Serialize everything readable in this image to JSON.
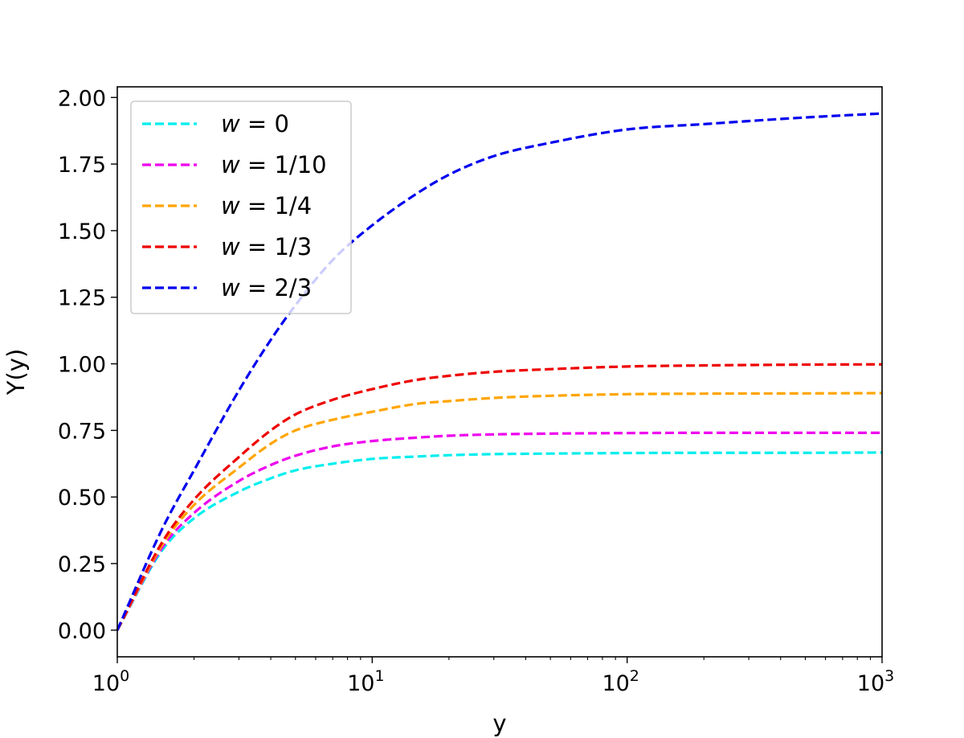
{
  "chart_data": {
    "type": "line",
    "xlabel": "y",
    "ylabel": "Y(y)",
    "xscale": "log",
    "xlim": [
      1,
      1000
    ],
    "ylim": [
      -0.1,
      2.04
    ],
    "x_ticks": [
      {
        "value": 1,
        "exp": "0"
      },
      {
        "value": 10,
        "exp": "1"
      },
      {
        "value": 100,
        "exp": "2"
      },
      {
        "value": 1000,
        "exp": "3"
      }
    ],
    "x_tick_base": "10",
    "y_ticks": [
      0,
      0.25,
      0.5,
      0.75,
      1.0,
      1.25,
      1.5,
      1.75,
      2.0
    ],
    "y_tick_labels": [
      "0.00",
      "0.25",
      "0.50",
      "0.75",
      "1.00",
      "1.25",
      "1.50",
      "1.75",
      "2.00"
    ],
    "grid": false,
    "legend_position": "top-left",
    "line_style": "dashed",
    "x": [
      1,
      1.5,
      2,
      3,
      4,
      5,
      7,
      10,
      15,
      20,
      30,
      50,
      100,
      200,
      500,
      1000
    ],
    "series": [
      {
        "name_var": "w",
        "name_eq": "=",
        "name_val": "0",
        "color": "#00eeee",
        "values": [
          0.0,
          0.3,
          0.42,
          0.52,
          0.57,
          0.6,
          0.625,
          0.643,
          0.652,
          0.657,
          0.661,
          0.663,
          0.665,
          0.666,
          0.666,
          0.667
        ]
      },
      {
        "name_var": "w",
        "name_eq": "=",
        "name_val": "1/10",
        "color": "#ee00ee",
        "values": [
          0.0,
          0.31,
          0.44,
          0.56,
          0.62,
          0.655,
          0.69,
          0.71,
          0.723,
          0.73,
          0.735,
          0.738,
          0.74,
          0.741,
          0.741,
          0.741
        ]
      },
      {
        "name_var": "w",
        "name_eq": "=",
        "name_val": "1/4",
        "color": "#ffa500",
        "values": [
          0.0,
          0.32,
          0.47,
          0.61,
          0.7,
          0.75,
          0.79,
          0.82,
          0.85,
          0.86,
          0.872,
          0.88,
          0.886,
          0.888,
          0.889,
          0.89
        ]
      },
      {
        "name_var": "w",
        "name_eq": "=",
        "name_val": "1/3",
        "color": "#ee0000",
        "values": [
          0.0,
          0.33,
          0.49,
          0.65,
          0.75,
          0.81,
          0.865,
          0.905,
          0.94,
          0.955,
          0.97,
          0.98,
          0.99,
          0.994,
          0.997,
          0.998
        ]
      },
      {
        "name_var": "w",
        "name_eq": "=",
        "name_val": "2/3",
        "color": "#0000ee",
        "values": [
          0.0,
          0.38,
          0.6,
          0.9,
          1.09,
          1.22,
          1.39,
          1.52,
          1.64,
          1.71,
          1.78,
          1.83,
          1.88,
          1.9,
          1.925,
          1.94
        ]
      }
    ]
  }
}
